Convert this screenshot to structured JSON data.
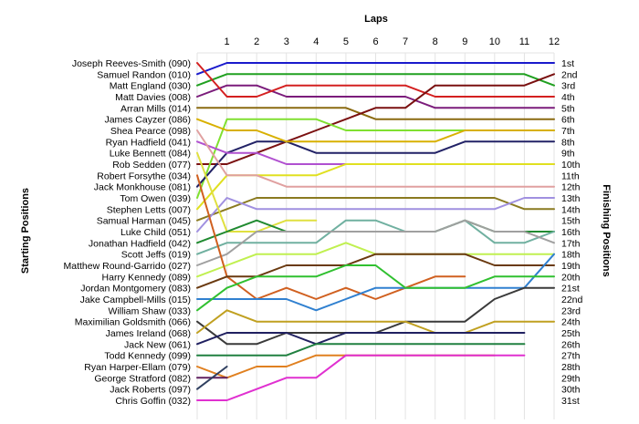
{
  "chart_data": {
    "type": "line",
    "title": "Laps",
    "xlabel": "Laps",
    "ylabel_left": "Starting Positions",
    "ylabel_right": "Finishing Positions",
    "laps": [
      1,
      2,
      3,
      4,
      5,
      6,
      7,
      8,
      9,
      10,
      11,
      12
    ],
    "xlim": [
      0,
      12
    ],
    "ylim": [
      1,
      31
    ],
    "grid": true,
    "finishing_labels": [
      "1st",
      "2nd",
      "3rd",
      "4th",
      "5th",
      "6th",
      "7th",
      "8th",
      "9th",
      "10th",
      "11th",
      "12th",
      "13th",
      "14th",
      "15th",
      "16th",
      "17th",
      "18th",
      "19th",
      "20th",
      "21st",
      "22nd",
      "23rd",
      "24th",
      "25th",
      "26th",
      "27th",
      "28th",
      "29th",
      "30th",
      "31st"
    ],
    "series": [
      {
        "name": "Samuel Randon (010)",
        "color": "#1a1acc",
        "values": [
          2,
          1,
          1,
          1,
          1,
          1,
          1,
          1,
          1,
          1,
          1,
          1,
          1
        ]
      },
      {
        "name": "Matt England (030)",
        "color": "#20a020",
        "values": [
          3,
          2,
          2,
          2,
          2,
          2,
          2,
          2,
          2,
          2,
          2,
          2,
          3
        ]
      },
      {
        "name": "Matt Davies (008)",
        "color": "#7b1c7b",
        "values": [
          4,
          3,
          3,
          4,
          4,
          4,
          4,
          4,
          5,
          5,
          5,
          5,
          5
        ]
      },
      {
        "name": "Joseph Reeves-Smith (090)",
        "color": "#d42020",
        "values": [
          1,
          4,
          4,
          3,
          3,
          3,
          3,
          3,
          4,
          4,
          4,
          4,
          4
        ]
      },
      {
        "name": "Arran Mills (014)",
        "color": "#8a6a10",
        "values": [
          5,
          5,
          5,
          5,
          5,
          5,
          6,
          6,
          6,
          6,
          6,
          6,
          6
        ]
      },
      {
        "name": "Rob Sedden (077)",
        "color": "#7a1010",
        "values": [
          10,
          10,
          9,
          8,
          7,
          6,
          5,
          5,
          3,
          3,
          3,
          3,
          2
        ]
      },
      {
        "name": "Tom Owen (039)",
        "color": "#80e030",
        "values": [
          13,
          6,
          6,
          6,
          6,
          7,
          7,
          7,
          7,
          7,
          7,
          7,
          7
        ]
      },
      {
        "name": "Jack Monkhouse (081)",
        "color": "#222266",
        "values": [
          12,
          9,
          8,
          8,
          9,
          9,
          9,
          9,
          9,
          8,
          8,
          8,
          8
        ]
      },
      {
        "name": "James Cayzer (086)",
        "color": "#d8b000",
        "values": [
          6,
          7,
          7,
          8,
          8,
          8,
          8,
          8,
          8,
          7,
          7,
          7,
          7
        ]
      },
      {
        "name": "Ryan Hadfield (041)",
        "color": "#b050d0",
        "values": [
          8,
          9,
          9,
          10,
          10,
          10,
          10,
          10,
          10,
          10,
          10,
          10,
          10
        ]
      },
      {
        "name": "Stephen Letts (007)",
        "color": "#e0e020",
        "values": [
          14,
          11,
          11,
          11,
          11,
          10,
          10,
          10,
          10,
          10,
          10,
          10,
          10
        ]
      },
      {
        "name": "Shea Pearce (098)",
        "color": "#e0a0a0",
        "values": [
          7,
          11,
          11,
          12,
          12,
          12,
          12,
          12,
          12,
          12,
          12,
          12,
          12
        ]
      },
      {
        "name": "Samual Harman (045)",
        "color": "#8a7a20",
        "values": [
          15,
          14,
          13,
          13,
          13,
          13,
          13,
          13,
          13,
          13,
          13,
          14,
          14
        ]
      },
      {
        "name": "Luke Child (051)",
        "color": "#a090e0",
        "values": [
          16,
          13,
          14,
          14,
          14,
          14,
          14,
          14,
          14,
          14,
          14,
          13,
          13
        ]
      },
      {
        "name": "Luke Bennett (084)",
        "color": "#e0e040",
        "values": [
          9,
          16,
          16,
          15,
          15,
          null,
          null,
          null,
          null,
          null,
          null,
          null,
          null
        ]
      },
      {
        "name": "Jonathan Hadfield (042)",
        "color": "#208a30",
        "values": [
          17,
          16,
          15,
          16,
          16,
          16,
          16,
          16,
          16,
          15,
          16,
          16,
          16
        ]
      },
      {
        "name": "Scott Jeffs (019)",
        "color": "#70b0a0",
        "values": [
          18,
          17,
          17,
          17,
          17,
          15,
          15,
          16,
          16,
          15,
          17,
          17,
          16
        ]
      },
      {
        "name": "Matthew Round-Garrido (027)",
        "color": "#a0a0a0",
        "values": [
          19,
          18,
          16,
          16,
          16,
          16,
          16,
          16,
          16,
          15,
          16,
          16,
          17
        ]
      },
      {
        "name": "Harry Kennedy (089)",
        "color": "#c0f050",
        "values": [
          20,
          19,
          18,
          18,
          18,
          17,
          18,
          18,
          18,
          18,
          18,
          18,
          18
        ]
      },
      {
        "name": "Robert Forsythe (034)",
        "color": "#d06020",
        "values": [
          11,
          20,
          22,
          21,
          22,
          21,
          22,
          21,
          20,
          20,
          null,
          null,
          null
        ]
      },
      {
        "name": "Jordan Montgomery (083)",
        "color": "#6a3a10",
        "values": [
          21,
          20,
          20,
          19,
          19,
          19,
          18,
          18,
          18,
          18,
          19,
          19,
          19
        ]
      },
      {
        "name": "Jake Campbell-Mills (015)",
        "color": "#3080d0",
        "values": [
          22,
          22,
          22,
          22,
          23,
          22,
          21,
          21,
          21,
          21,
          21,
          21,
          18
        ]
      },
      {
        "name": "William Shaw (033)",
        "color": "#30c030",
        "values": [
          23,
          21,
          20,
          20,
          20,
          19,
          19,
          21,
          21,
          21,
          20,
          20,
          20
        ]
      },
      {
        "name": "Maximilian Goldsmith (066)",
        "color": "#3a3a3a",
        "values": [
          24,
          26,
          26,
          25,
          25,
          25,
          25,
          24,
          24,
          24,
          22,
          21,
          21
        ]
      },
      {
        "name": "James Ireland (068)",
        "color": "#c0a020",
        "values": [
          25,
          23,
          24,
          24,
          24,
          24,
          24,
          24,
          25,
          25,
          24,
          24,
          24
        ]
      },
      {
        "name": "Jack New (061)",
        "color": "#202060",
        "values": [
          26,
          25,
          25,
          25,
          26,
          25,
          25,
          25,
          25,
          25,
          25,
          25,
          null
        ]
      },
      {
        "name": "Todd Kennedy (099)",
        "color": "#208040",
        "values": [
          27,
          27,
          27,
          27,
          26,
          26,
          26,
          26,
          26,
          26,
          26,
          26,
          null
        ]
      },
      {
        "name": "Ryan Harper-Ellam (079)",
        "color": "#e08020",
        "values": [
          28,
          29,
          28,
          28,
          27,
          27,
          27,
          27,
          27,
          27,
          27,
          null,
          null
        ]
      },
      {
        "name": "George Stratford (082)",
        "color": "#602060",
        "values": [
          29,
          29,
          null,
          null,
          null,
          null,
          null,
          null,
          null,
          null,
          null,
          null,
          null
        ]
      },
      {
        "name": "Jack Roberts (097)",
        "color": "#304060",
        "values": [
          30,
          28,
          null,
          null,
          null,
          null,
          null,
          null,
          null,
          null,
          null,
          null,
          null
        ]
      },
      {
        "name": "Chris Goffin (032)",
        "color": "#e030d0",
        "values": [
          31,
          31,
          30,
          29,
          29,
          27,
          27,
          27,
          27,
          27,
          27,
          27,
          null
        ]
      }
    ]
  }
}
